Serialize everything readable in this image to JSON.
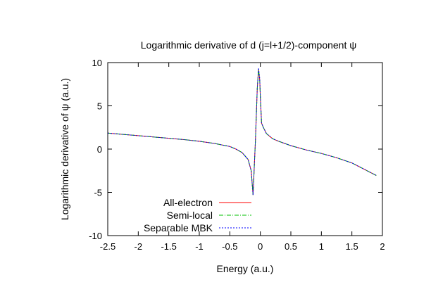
{
  "chart_data": {
    "type": "line",
    "title": "Logarithmic derivative of d (j=l+1/2)-component ψ",
    "xlabel": "Energy (a.u.)",
    "ylabel": "Logarithmic derivative of ψ (a.u.)",
    "xlim": [
      -2.5,
      2
    ],
    "ylim": [
      -10,
      10
    ],
    "xticks": [
      -2.5,
      -2,
      -1.5,
      -1,
      -0.5,
      0,
      0.5,
      1,
      1.5,
      2
    ],
    "xtick_labels": [
      "-2.5",
      "-2",
      "-1.5",
      "-1",
      "-0.5",
      "0",
      "0.5",
      "1",
      "1.5",
      "2"
    ],
    "yticks": [
      -10,
      -5,
      0,
      5,
      10
    ],
    "ytick_labels": [
      "-10",
      "-5",
      "0",
      "5",
      "10"
    ],
    "grid": false,
    "legend_position": "bottom-left",
    "series": [
      {
        "name": "All-electron",
        "color": "#ff0000",
        "dash": "solid",
        "x": [
          -2.5,
          -2.25,
          -2.0,
          -1.75,
          -1.5,
          -1.25,
          -1.0,
          -0.75,
          -0.5,
          -0.4,
          -0.3,
          -0.2,
          -0.15,
          -0.12,
          -0.08,
          -0.05,
          -0.03,
          -0.01,
          0.0,
          0.02,
          0.05,
          0.1,
          0.2,
          0.3,
          0.5,
          0.75,
          1.0,
          1.25,
          1.5,
          1.75,
          1.9
        ],
        "y": [
          1.85,
          1.7,
          1.55,
          1.4,
          1.25,
          1.1,
          0.9,
          0.65,
          0.3,
          0.0,
          -0.4,
          -1.2,
          -2.5,
          -5.3,
          1.0,
          7.0,
          9.2,
          8.0,
          6.0,
          3.0,
          2.5,
          1.8,
          1.2,
          0.9,
          0.4,
          -0.1,
          -0.5,
          -1.0,
          -1.6,
          -2.5,
          -3.05
        ]
      },
      {
        "name": "Semi-local",
        "color": "#00c000",
        "dash": "6 2 1 2",
        "x": [
          -2.5,
          -2.25,
          -2.0,
          -1.75,
          -1.5,
          -1.25,
          -1.0,
          -0.75,
          -0.5,
          -0.4,
          -0.3,
          -0.2,
          -0.15,
          -0.12,
          -0.08,
          -0.05,
          -0.03,
          -0.01,
          0.0,
          0.02,
          0.05,
          0.1,
          0.2,
          0.3,
          0.5,
          0.75,
          1.0,
          1.25,
          1.5,
          1.75,
          1.9
        ],
        "y": [
          1.85,
          1.7,
          1.55,
          1.4,
          1.25,
          1.1,
          0.9,
          0.65,
          0.3,
          0.0,
          -0.4,
          -1.2,
          -2.5,
          -5.3,
          1.0,
          7.0,
          9.2,
          8.0,
          6.0,
          3.0,
          2.5,
          1.8,
          1.2,
          0.9,
          0.4,
          -0.1,
          -0.5,
          -1.0,
          -1.6,
          -2.5,
          -3.05
        ]
      },
      {
        "name": "Separable MBK",
        "color": "#0000ff",
        "dash": "2 2",
        "x": [
          -2.5,
          -2.25,
          -2.0,
          -1.75,
          -1.5,
          -1.25,
          -1.0,
          -0.75,
          -0.5,
          -0.4,
          -0.3,
          -0.2,
          -0.15,
          -0.12,
          -0.08,
          -0.05,
          -0.03,
          -0.01,
          0.0,
          0.02,
          0.05,
          0.1,
          0.2,
          0.3,
          0.5,
          0.75,
          1.0,
          1.25,
          1.5,
          1.75,
          1.9
        ],
        "y": [
          1.85,
          1.7,
          1.55,
          1.4,
          1.25,
          1.1,
          0.9,
          0.65,
          0.3,
          0.0,
          -0.4,
          -1.2,
          -2.5,
          -5.3,
          1.0,
          7.0,
          9.4,
          8.2,
          6.0,
          3.0,
          2.5,
          1.8,
          1.2,
          0.9,
          0.4,
          -0.1,
          -0.5,
          -1.0,
          -1.6,
          -2.5,
          -3.05
        ]
      }
    ]
  }
}
